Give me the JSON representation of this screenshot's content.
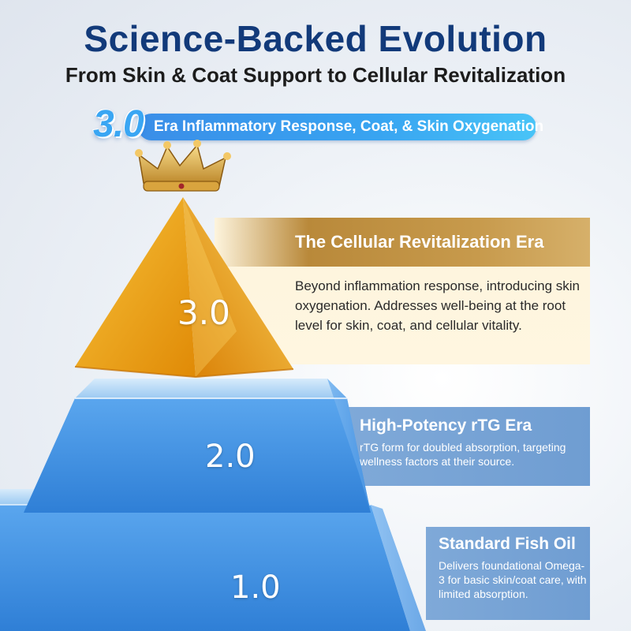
{
  "header": {
    "title": "Science-Backed Evolution",
    "subtitle": "From Skin & Coat Support to Cellular Revitalization"
  },
  "banner": {
    "version": "3.0",
    "text": "Era Inflammatory Response, Coat, & Skin Oxygenation"
  },
  "tiers": [
    {
      "label": "3.0",
      "title": "The Cellular Revitalization Era",
      "description": "Beyond inflammation response, introducing skin oxygenation. Addresses well-being at the root level for skin, coat, and cellular vitality."
    },
    {
      "label": "2.0",
      "title": "High-Potency rTG Era",
      "description": "rTG form for doubled absorption, targeting wellness factors at their source."
    },
    {
      "label": "1.0",
      "title": "Standard Fish Oil",
      "description": "Delivers foundational Omega-3 for basic skin/coat care, with limited absorption."
    }
  ],
  "icons": {
    "crown": "crown-icon"
  },
  "colors": {
    "title": "#123a7a",
    "banner": "#38a4f1",
    "gold": "#e9a20f",
    "blue": "#3f8fe0"
  }
}
